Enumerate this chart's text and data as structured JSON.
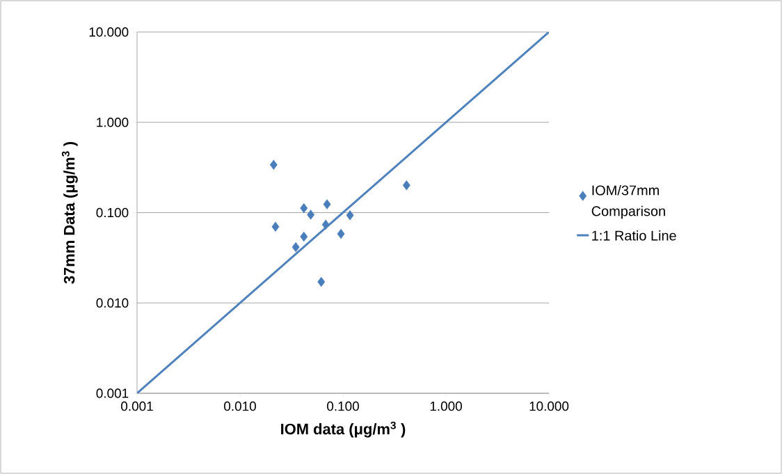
{
  "chart_data": {
    "type": "scatter",
    "xlabel": "IOM data  (μg/m$^{3}$ )",
    "ylabel": "37mm Data  (μg/m$^{3}$ )",
    "log": "xy",
    "grid": "y",
    "legend": "right",
    "xlim": [
      0.001,
      10
    ],
    "ylim": [
      0.001,
      10
    ],
    "xticks": [
      0.001,
      {
        "value": 0.01,
        "label": "0.010"
      },
      {
        "value": 0.1,
        "label": "0.100"
      },
      {
        "value": 1,
        "label": "1.000"
      },
      {
        "value": 10,
        "label": "10.000"
      }
    ],
    "yticks": [
      0.001,
      {
        "value": 0.01,
        "label": "0.010"
      },
      {
        "value": 0.1,
        "label": "0.100"
      },
      {
        "value": 1,
        "label": "1.000"
      },
      {
        "value": 10,
        "label": "10.000"
      }
    ],
    "series": [
      {
        "name": "IOM/37mm Comparison",
        "marker": "diamond",
        "color": "#4a7ebb",
        "x": [
          0.0212,
          0.0221,
          0.0417,
          0.0486,
          0.07,
          0.068,
          0.0417,
          0.0348,
          0.0955,
          0.117,
          0.414,
          0.0615
        ],
        "values": [
          0.339,
          0.0698,
          0.112,
          0.095,
          0.124,
          0.0738,
          0.0542,
          0.0415,
          0.0582,
          0.0936,
          0.201,
          0.0171
        ]
      },
      {
        "name": "1:1 Ratio Line",
        "type": "line",
        "marker": "none",
        "line_style": "solid",
        "color": "#4f81bd",
        "x": [
          0.001,
          10
        ],
        "values": [
          0.001,
          10
        ]
      }
    ]
  }
}
